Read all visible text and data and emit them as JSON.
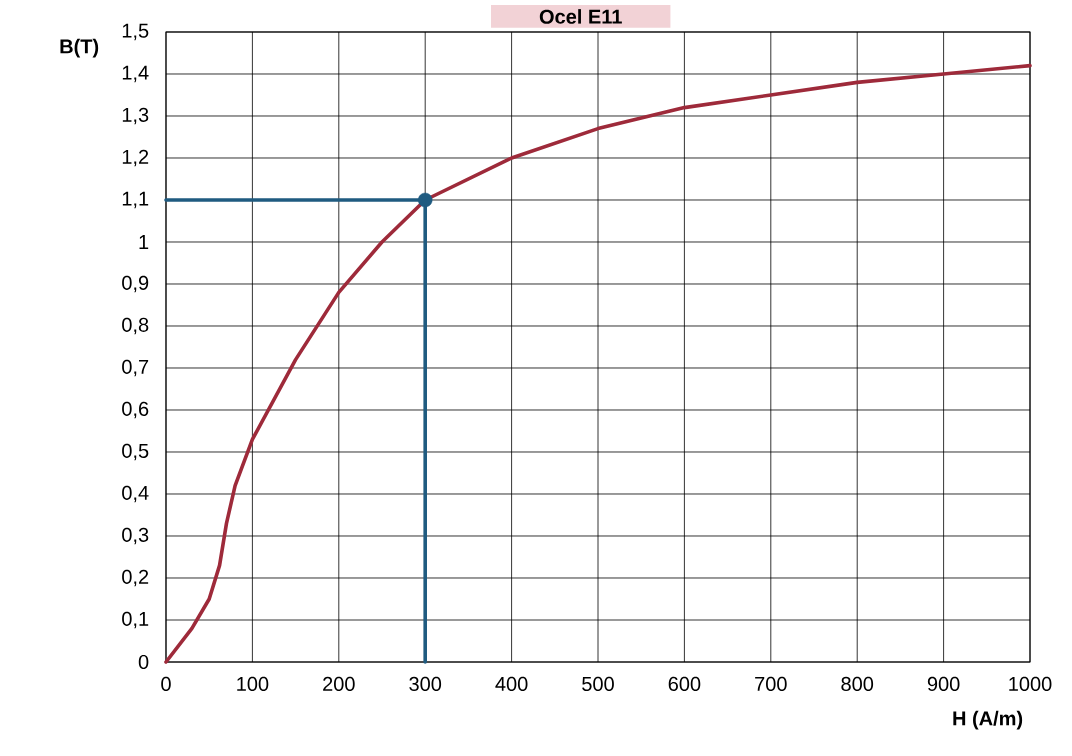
{
  "chart_data": {
    "type": "line",
    "title": "Ocel E11",
    "xlabel": "H (A/m)",
    "ylabel": "B(T)",
    "xlim": [
      0,
      1000
    ],
    "ylim": [
      0,
      1.5
    ],
    "xticks": [
      0,
      100,
      200,
      300,
      400,
      500,
      600,
      700,
      800,
      900,
      1000
    ],
    "yticks": [
      0,
      {
        "value": 0.1,
        "label": "0,1"
      },
      {
        "value": 0.2,
        "label": "0,2"
      },
      {
        "value": 0.3,
        "label": "0,3"
      },
      {
        "value": 0.4,
        "label": "0,4"
      },
      {
        "value": 0.5,
        "label": "0,5"
      },
      {
        "value": 0.6,
        "label": "0,6"
      },
      {
        "value": 0.7,
        "label": "0,7"
      },
      {
        "value": 0.8,
        "label": "0,8"
      },
      {
        "value": 0.9,
        "label": "0,9"
      },
      1,
      {
        "value": 1.1,
        "label": "1,1"
      },
      {
        "value": 1.2,
        "label": "1,2"
      },
      {
        "value": 1.3,
        "label": "1,3"
      },
      {
        "value": 1.4,
        "label": "1,4"
      },
      {
        "value": 1.5,
        "label": "1,5"
      }
    ],
    "grid": true,
    "series": [
      {
        "color": "#9e2a3a",
        "marker": "none",
        "x": [
          0,
          30,
          50,
          62,
          70,
          80,
          100,
          150,
          200,
          250,
          300,
          400,
          500,
          600,
          700,
          800,
          900,
          1000
        ],
        "values": [
          0,
          0.08,
          0.15,
          0.23,
          0.33,
          0.42,
          0.53,
          0.72,
          0.88,
          1.0,
          1.1,
          1.2,
          1.27,
          1.32,
          1.35,
          1.38,
          1.4,
          1.42
        ]
      },
      {
        "type": "line",
        "color": "#1f5b80",
        "marker": "none",
        "x": [
          0,
          300,
          300
        ],
        "values": [
          1.1,
          1.1,
          0
        ]
      },
      {
        "type": "scatter",
        "color": "#1f5b80",
        "marker": "circle",
        "x": [
          300
        ],
        "values": [
          1.1
        ]
      }
    ]
  }
}
